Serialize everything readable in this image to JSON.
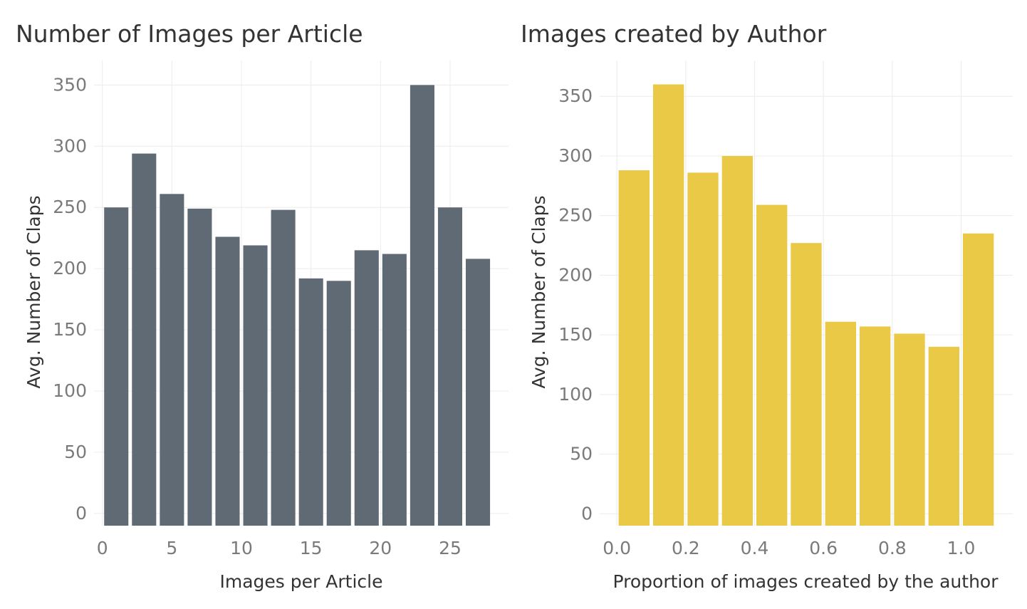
{
  "colors": {
    "left_bars": "#5f6a74",
    "right_bars": "#eac946",
    "grid": "#ececec",
    "tick_text": "#7a7a7a",
    "label_text": "#333333"
  },
  "chart_data": [
    {
      "type": "bar",
      "title": "Number of Images per Article",
      "xlabel": "Images per Article",
      "ylabel": "Avg. Number of Claps",
      "grid": true,
      "xlim": [
        -0.6,
        29.2
      ],
      "ylim": [
        -10,
        370
      ],
      "x_ticks": [
        0,
        5,
        10,
        15,
        20,
        25
      ],
      "y_ticks": [
        0,
        50,
        100,
        150,
        200,
        250,
        300,
        350
      ],
      "bin_width": 2,
      "x": [
        1,
        3,
        5,
        7,
        9,
        11,
        13,
        15,
        17,
        19,
        21,
        23,
        25,
        27
      ],
      "values": [
        250,
        294,
        261,
        249,
        226,
        219,
        248,
        192,
        190,
        215,
        212,
        350,
        250,
        208
      ]
    },
    {
      "type": "bar",
      "title": "Images created by Author",
      "xlabel": "Proportion of images created by the author",
      "ylabel": "Avg. Number of Claps",
      "grid": true,
      "xlim": [
        -0.05,
        1.15
      ],
      "ylim": [
        -10,
        380
      ],
      "x_ticks": [
        0.0,
        0.2,
        0.4,
        0.6,
        0.8,
        1.0
      ],
      "x_tick_labels": [
        "0.0",
        "0.2",
        "0.4",
        "0.6",
        "0.8",
        "1.0"
      ],
      "y_ticks": [
        0,
        50,
        100,
        150,
        200,
        250,
        300,
        350
      ],
      "bin_width": 0.1,
      "x": [
        0.05,
        0.15,
        0.25,
        0.35,
        0.45,
        0.55,
        0.65,
        0.75,
        0.85,
        0.95,
        1.05
      ],
      "values": [
        288,
        360,
        286,
        300,
        259,
        227,
        161,
        157,
        151,
        140,
        235
      ]
    }
  ]
}
